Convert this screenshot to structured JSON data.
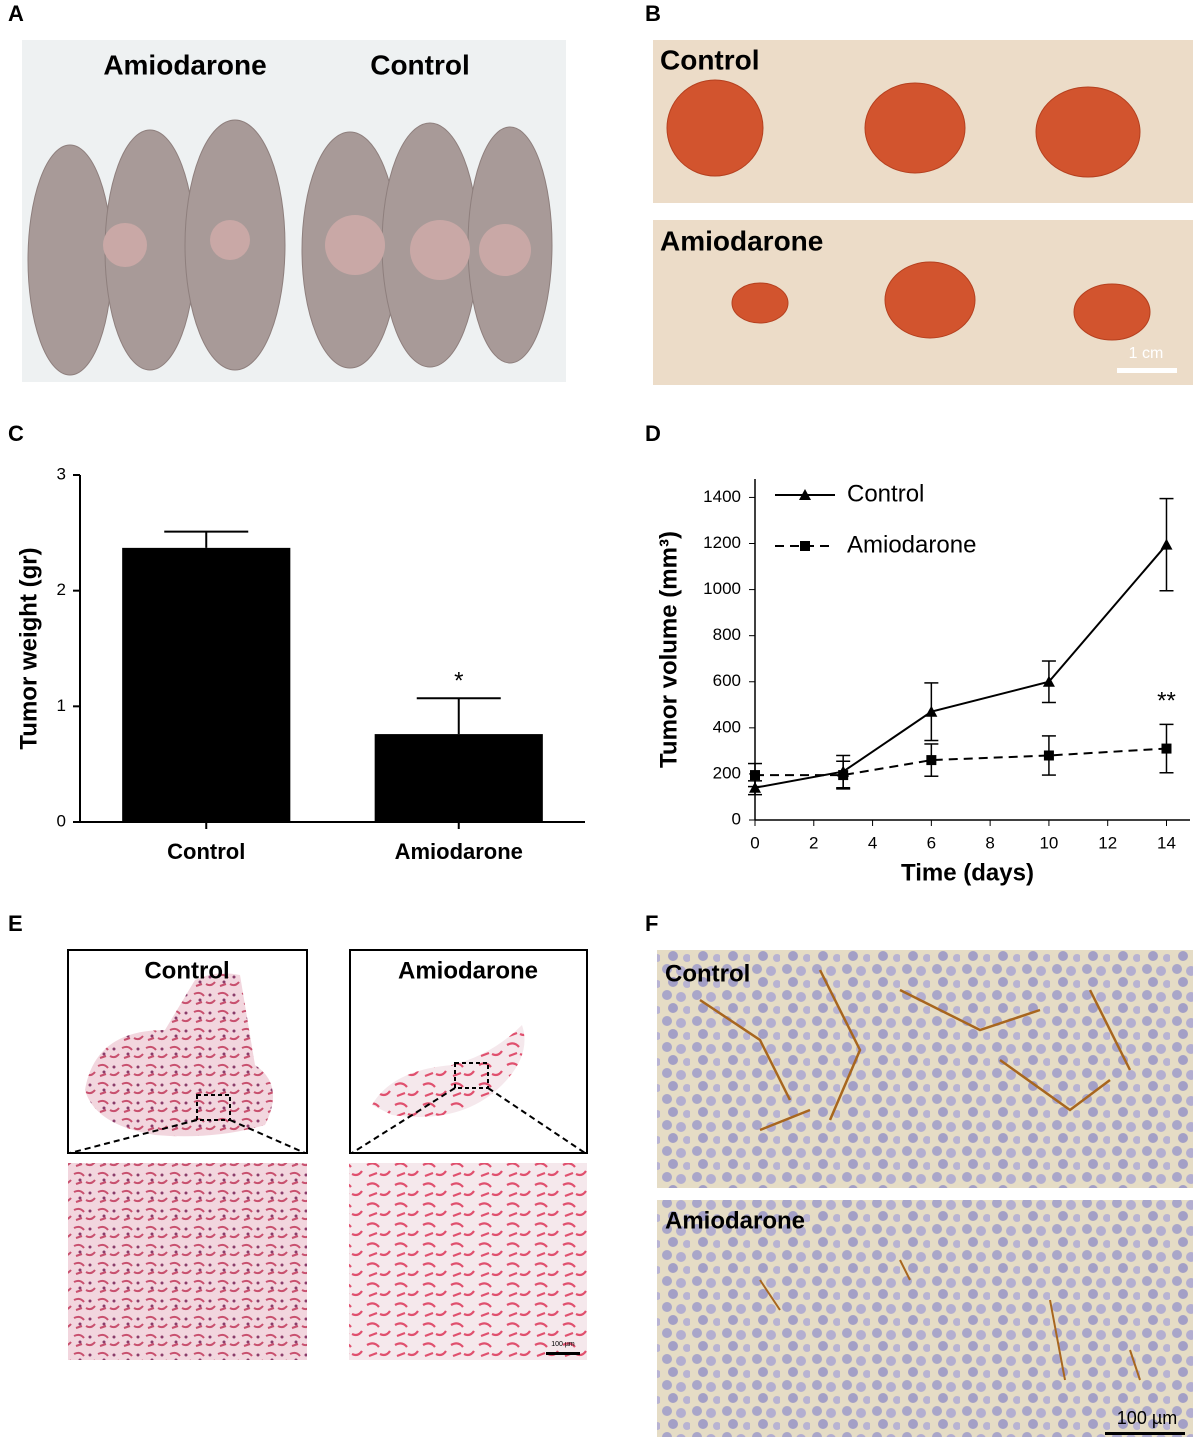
{
  "panels": {
    "a": "A",
    "b": "B",
    "c": "C",
    "d": "D",
    "e": "E",
    "f": "F"
  },
  "photo_a": {
    "label_left": "Amiodarone",
    "label_right": "Control"
  },
  "photo_b": {
    "top_label": "Control",
    "bottom_label": "Amiodarone",
    "scale": "1 cm"
  },
  "photo_e": {
    "left_label": "Control",
    "right_label": "Amiodarone",
    "scale": "100 µm"
  },
  "photo_f": {
    "top_label": "Control",
    "bottom_label": "Amiodarone",
    "scale": "100 µm"
  },
  "chart_data": [
    {
      "type": "bar",
      "categories": [
        "Control",
        "Amiodarone"
      ],
      "values": [
        2.37,
        0.76
      ],
      "errors": [
        0.14,
        0.31
      ],
      "significance_labels": [
        null,
        "*"
      ],
      "color": "#000000",
      "ylabel": "Tumor weight (gr)",
      "ylim": [
        0,
        3
      ],
      "yticks": [
        0,
        1,
        2,
        3
      ]
    },
    {
      "type": "line",
      "x": [
        0,
        3,
        6,
        10,
        14
      ],
      "xlabel": "Time (days)",
      "ylabel": "Tumor volume (mm³)",
      "xlim": [
        0,
        14.8
      ],
      "xticks": [
        0,
        2,
        4,
        6,
        8,
        10,
        12,
        14
      ],
      "ylim": [
        0,
        1480
      ],
      "yticks": [
        0,
        200,
        400,
        600,
        800,
        1000,
        1200,
        1400
      ],
      "legend": "upper left",
      "series": [
        {
          "name": "Control",
          "color": "#000000",
          "line_style": "solid",
          "marker": "triangle",
          "values": [
            140,
            210,
            470,
            600,
            1195
          ],
          "errors": [
            30,
            70,
            125,
            90,
            200
          ],
          "significance_labels": [
            null,
            null,
            null,
            null,
            null
          ]
        },
        {
          "name": "Amiodarone",
          "color": "#000000",
          "line_style": "dashed",
          "marker": "square",
          "values": [
            195,
            195,
            260,
            280,
            310
          ],
          "errors": [
            50,
            60,
            70,
            85,
            105
          ],
          "significance_labels": [
            null,
            null,
            null,
            null,
            "**"
          ]
        }
      ]
    }
  ]
}
